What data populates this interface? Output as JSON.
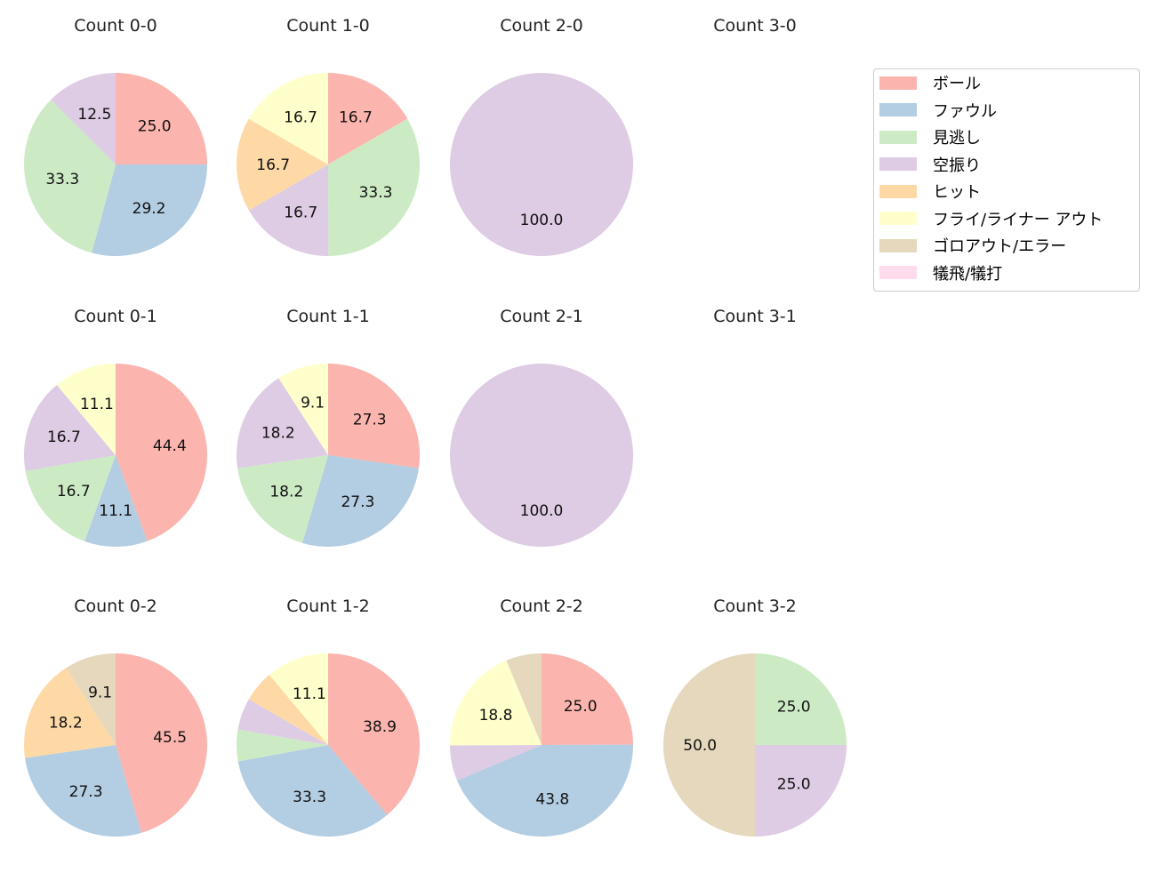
{
  "chart_data": [
    {
      "type": "pie",
      "title": "Count 0-0",
      "values": [
        25.0,
        29.2,
        33.3,
        12.5,
        0,
        0,
        0,
        0
      ]
    },
    {
      "type": "pie",
      "title": "Count 1-0",
      "values": [
        16.7,
        0,
        33.3,
        16.7,
        16.7,
        16.7,
        0,
        0
      ]
    },
    {
      "type": "pie",
      "title": "Count 2-0",
      "values": [
        0,
        0,
        0,
        100.0,
        0,
        0,
        0,
        0
      ]
    },
    {
      "type": "pie",
      "title": "Count 3-0",
      "values": []
    },
    {
      "type": "pie",
      "title": "Count 0-1",
      "values": [
        44.4,
        11.1,
        16.7,
        16.7,
        0,
        11.1,
        0,
        0
      ]
    },
    {
      "type": "pie",
      "title": "Count 1-1",
      "values": [
        27.3,
        27.3,
        18.2,
        18.2,
        0,
        9.1,
        0,
        0
      ]
    },
    {
      "type": "pie",
      "title": "Count 2-1",
      "values": [
        0,
        0,
        0,
        100.0,
        0,
        0,
        0,
        0
      ]
    },
    {
      "type": "pie",
      "title": "Count 3-1",
      "values": []
    },
    {
      "type": "pie",
      "title": "Count 0-2",
      "values": [
        45.5,
        27.3,
        0,
        0,
        18.2,
        0,
        9.1,
        0
      ]
    },
    {
      "type": "pie",
      "title": "Count 1-2",
      "values": [
        38.9,
        33.3,
        5.6,
        5.6,
        5.6,
        11.1,
        0,
        0
      ]
    },
    {
      "type": "pie",
      "title": "Count 2-2",
      "values": [
        25.0,
        43.8,
        0,
        6.3,
        0,
        18.8,
        6.3,
        0
      ]
    },
    {
      "type": "pie",
      "title": "Count 3-2",
      "values": [
        0,
        0,
        25.0,
        25.0,
        0,
        0,
        50.0,
        0
      ]
    }
  ],
  "legend": {
    "placement": "top-right",
    "entries": [
      "ボール",
      "ファウル",
      "見逃し",
      "空振り",
      "ヒット",
      "フライ/ライナー アウト",
      "ゴロアウト/エラー",
      "犠飛/犠打"
    ]
  },
  "colors": [
    "#fbb4ae",
    "#b3cde3",
    "#ccebc5",
    "#decbe4",
    "#fed9a6",
    "#ffffcc",
    "#e5d8bd",
    "#fddaec"
  ]
}
